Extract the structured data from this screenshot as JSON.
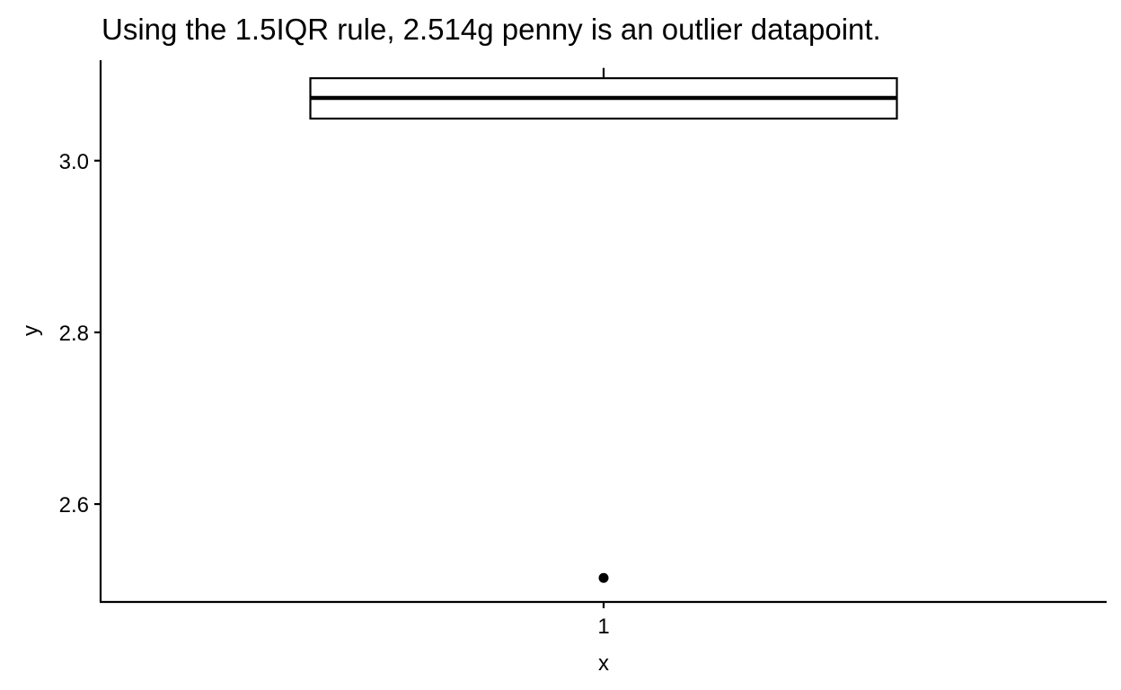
{
  "chart_data": {
    "type": "boxplot",
    "title": "Using the 1.5IQR rule, 2.514g penny is an outlier datapoint.",
    "xlabel": "x",
    "ylabel": "y",
    "x_categories": [
      "1"
    ],
    "y_ticks": [
      2.6,
      2.8,
      3.0
    ],
    "y_tick_labels": [
      "2.6",
      "2.8",
      "3.0"
    ],
    "ylim": [
      2.486,
      3.117
    ],
    "grid": false,
    "boxes": [
      {
        "category": "1",
        "whisker_low": 3.049,
        "q1": 3.049,
        "median": 3.073,
        "q3": 3.096,
        "whisker_high": 3.108,
        "outliers": [
          2.514
        ]
      }
    ],
    "colors": {
      "box_stroke": "#000000",
      "box_fill": "#ffffff",
      "outlier": "#000000"
    }
  }
}
